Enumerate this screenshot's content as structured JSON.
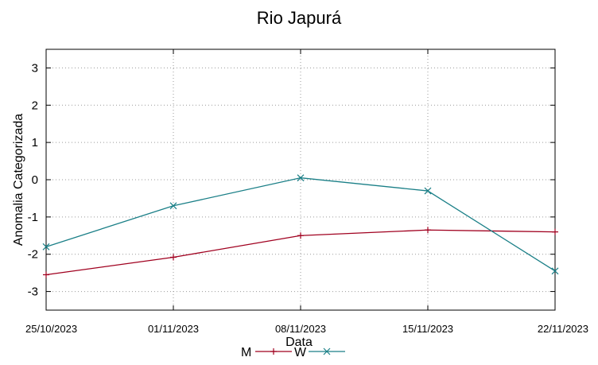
{
  "chart_data": {
    "type": "line",
    "title": "Rio Japurá",
    "xlabel": "Data",
    "ylabel": "Anomalia Categorizada",
    "categories": [
      "25/10/2023",
      "01/11/2023",
      "08/11/2023",
      "15/11/2023",
      "22/11/2023"
    ],
    "ylim": [
      -3.5,
      3.5
    ],
    "yticks": [
      "3",
      "2",
      "1",
      "0",
      "-1",
      "-2",
      "-3"
    ],
    "ytick_values": [
      3,
      2,
      1,
      0,
      -1,
      -2,
      -3
    ],
    "grid": true,
    "legend_position": "bottom",
    "series": [
      {
        "name": "M",
        "color": "#a0001f",
        "marker": "plus",
        "values": [
          -2.55,
          -2.08,
          -1.5,
          -1.35,
          -1.4
        ]
      },
      {
        "name": "W",
        "color": "#1a7f87",
        "marker": "cross",
        "values": [
          -1.8,
          -0.7,
          0.05,
          -0.3,
          -2.45
        ]
      }
    ]
  }
}
